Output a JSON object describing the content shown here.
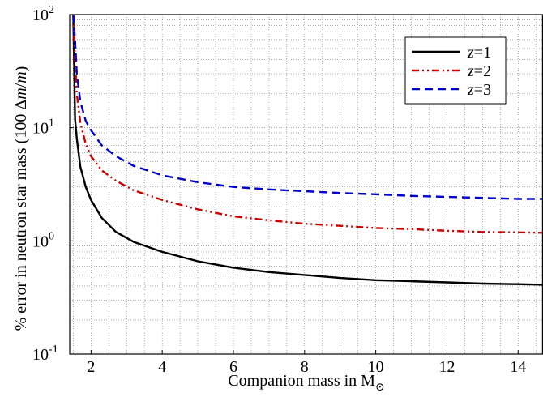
{
  "chart_data": {
    "type": "line",
    "xlabel_prefix": "Companion mass in M",
    "xlabel_sub": "⊙",
    "ylabel_prefix": "% error in neutron star mass (100 Δ",
    "ylabel_m1": "m",
    "ylabel_mid": "/",
    "ylabel_m2": "m",
    "ylabel_suffix": ")",
    "xlim": [
      1.4,
      14.7
    ],
    "ylim": [
      0.1,
      100
    ],
    "yscale": "log",
    "grid": true,
    "legend_position": "top-right",
    "x_ticks": [
      {
        "value": 2,
        "label": "2"
      },
      {
        "value": 4,
        "label": "4"
      },
      {
        "value": 6,
        "label": "6"
      },
      {
        "value": 8,
        "label": "8"
      },
      {
        "value": 10,
        "label": "10"
      },
      {
        "value": 12,
        "label": "12"
      },
      {
        "value": 14,
        "label": "14"
      }
    ],
    "y_ticks": [
      {
        "value": 0.1,
        "base": "10",
        "exp": "-1"
      },
      {
        "value": 1,
        "base": "10",
        "exp": "0"
      },
      {
        "value": 10,
        "base": "10",
        "exp": "1"
      },
      {
        "value": 100,
        "base": "10",
        "exp": "2"
      }
    ],
    "series": [
      {
        "name_var": "z",
        "name_rest": "=1",
        "color": "#000000",
        "dash": "none",
        "x": [
          1.5,
          1.55,
          1.6,
          1.7,
          1.85,
          2.0,
          2.3,
          2.7,
          3.2,
          4,
          5,
          6,
          7,
          8,
          9,
          10,
          11,
          12,
          13,
          14,
          14.7
        ],
        "y": [
          100,
          12,
          8,
          4.5,
          3.0,
          2.3,
          1.6,
          1.2,
          0.98,
          0.8,
          0.66,
          0.58,
          0.53,
          0.5,
          0.47,
          0.45,
          0.44,
          0.43,
          0.42,
          0.415,
          0.41
        ]
      },
      {
        "name_var": "z",
        "name_rest": "=2",
        "color": "#cc0000",
        "dash": "9,4,2,4,2,4",
        "x": [
          1.5,
          1.55,
          1.6,
          1.7,
          1.85,
          2.0,
          2.3,
          2.7,
          3.2,
          4,
          5,
          6,
          7,
          8,
          9,
          10,
          11,
          12,
          13,
          14,
          14.7
        ],
        "y": [
          100,
          40,
          20,
          11,
          7.2,
          5.6,
          4.2,
          3.4,
          2.8,
          2.3,
          1.9,
          1.65,
          1.52,
          1.42,
          1.36,
          1.3,
          1.27,
          1.23,
          1.2,
          1.19,
          1.18
        ]
      },
      {
        "name_var": "z",
        "name_rest": "=3",
        "color": "#0000cc",
        "dash": "10,6",
        "x": [
          1.5,
          1.55,
          1.6,
          1.7,
          1.85,
          2.0,
          2.3,
          2.7,
          3.2,
          4,
          5,
          6,
          7,
          8,
          9,
          10,
          11,
          12,
          13,
          14,
          14.7
        ],
        "y": [
          100,
          60,
          30,
          17,
          11.5,
          9.5,
          7.0,
          5.6,
          4.6,
          3.8,
          3.3,
          3.0,
          2.85,
          2.75,
          2.65,
          2.58,
          2.5,
          2.45,
          2.4,
          2.35,
          2.35
        ]
      }
    ]
  }
}
